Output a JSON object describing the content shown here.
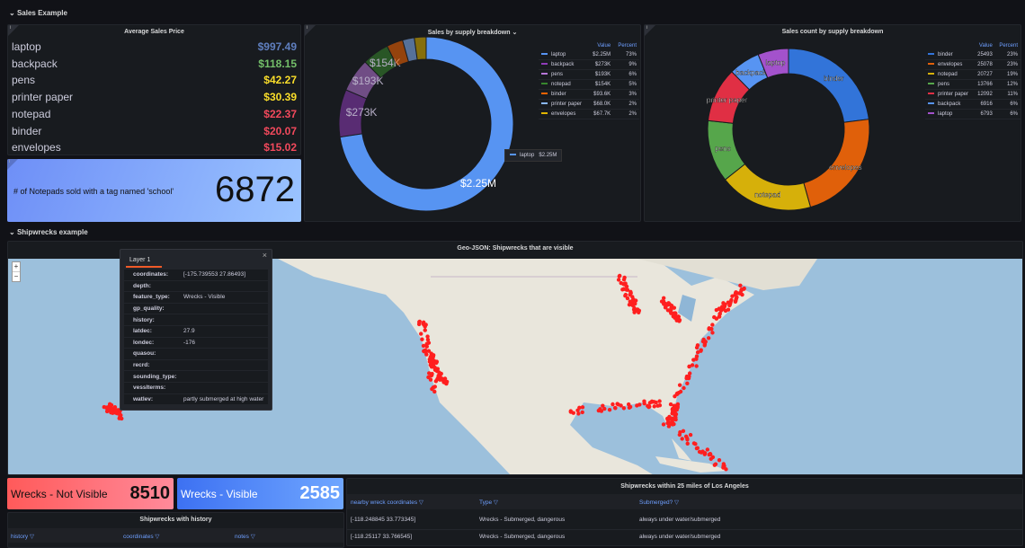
{
  "rows": {
    "sales": "Sales Example",
    "shipwrecks": "Shipwrecks example"
  },
  "avg_price": {
    "title": "Average Sales Price",
    "items": [
      {
        "label": "laptop",
        "value": "$997.49",
        "color": "#5f7fbf"
      },
      {
        "label": "backpack",
        "value": "$118.15",
        "color": "#73bf69"
      },
      {
        "label": "pens",
        "value": "$42.27",
        "color": "#fade2a"
      },
      {
        "label": "printer paper",
        "value": "$30.39",
        "color": "#fade2a"
      },
      {
        "label": "notepad",
        "value": "$22.37",
        "color": "#f2495c"
      },
      {
        "label": "binder",
        "value": "$20.07",
        "color": "#f2495c"
      },
      {
        "label": "envelopes",
        "value": "$15.02",
        "color": "#f2495c"
      }
    ]
  },
  "notepad_stat": {
    "label": "# of Notepads sold with a tag named 'school'",
    "value": "6872"
  },
  "chart_data": [
    {
      "type": "pie",
      "donut": true,
      "title": "Sales by supply breakdown",
      "legend_headers": [
        "Value",
        "Percent"
      ],
      "legend_placement": "right",
      "tooltip": {
        "label": "laptop",
        "value": "$2.25M"
      },
      "slices": [
        {
          "label": "laptop",
          "value": 2250000,
          "display": "$2.25M",
          "percent": "73%",
          "color": "#5794f2"
        },
        {
          "label": "backpack",
          "value": 273000,
          "display": "$273K",
          "percent": "9%",
          "color": "#8f3bb8"
        },
        {
          "label": "pens",
          "value": 193000,
          "display": "$193K",
          "percent": "6%",
          "color": "#b877d9"
        },
        {
          "label": "notepad",
          "value": 154000,
          "display": "$154K",
          "percent": "5%",
          "color": "#37872d"
        },
        {
          "label": "binder",
          "value": 93600,
          "display": "$93.6K",
          "percent": "3%",
          "color": "#fa6400"
        },
        {
          "label": "printer paper",
          "value": 68000,
          "display": "$68.0K",
          "percent": "2%",
          "color": "#8ab8ff"
        },
        {
          "label": "envelopes",
          "value": 67700,
          "display": "$67.7K",
          "percent": "2%",
          "color": "#e0b400"
        }
      ]
    },
    {
      "type": "pie",
      "donut": true,
      "title": "Sales count by supply breakdown",
      "legend_headers": [
        "Value",
        "Percent"
      ],
      "legend_placement": "right",
      "slices": [
        {
          "label": "binder",
          "value": 25493,
          "display": "25493",
          "percent": "23%",
          "color": "#3274d9"
        },
        {
          "label": "envelopes",
          "value": 25078,
          "display": "25078",
          "percent": "23%",
          "color": "#e0600a"
        },
        {
          "label": "notepad",
          "value": 20727,
          "display": "20727",
          "percent": "19%",
          "color": "#d6b00a"
        },
        {
          "label": "pens",
          "value": 13766,
          "display": "13766",
          "percent": "12%",
          "color": "#56a64b"
        },
        {
          "label": "printer paper",
          "value": 12092,
          "display": "12092",
          "percent": "11%",
          "color": "#e02f44"
        },
        {
          "label": "backpack",
          "value": 6916,
          "display": "6916",
          "percent": "6%",
          "color": "#5794f2"
        },
        {
          "label": "laptop",
          "value": 6793,
          "display": "6793",
          "percent": "6%",
          "color": "#a352cc"
        }
      ]
    }
  ],
  "map": {
    "title": "Geo-JSON: Shipwrecks that are visible",
    "zoom_in": "+",
    "zoom_out": "−",
    "popup": {
      "tab": "Layer 1",
      "close": "×",
      "fields": [
        {
          "k": "coordinates:",
          "v": "[-175.739553 27.86493]"
        },
        {
          "k": "depth:",
          "v": ""
        },
        {
          "k": "feature_type:",
          "v": "Wrecks - Visible"
        },
        {
          "k": "gp_quality:",
          "v": ""
        },
        {
          "k": "history:",
          "v": ""
        },
        {
          "k": "latdec:",
          "v": "27.9"
        },
        {
          "k": "londec:",
          "v": "-176"
        },
        {
          "k": "quasou:",
          "v": ""
        },
        {
          "k": "recrd:",
          "v": ""
        },
        {
          "k": "sounding_type:",
          "v": ""
        },
        {
          "k": "vesslterms:",
          "v": ""
        },
        {
          "k": "watlev:",
          "v": "partly submerged at high water"
        }
      ]
    }
  },
  "stat_not_visible": {
    "label": "Wrecks - Not Visible",
    "value": "8510"
  },
  "stat_visible": {
    "label": "Wrecks - Visible",
    "value": "2585"
  },
  "history_table": {
    "title": "Shipwrecks with history",
    "columns": [
      "history",
      "coordinates",
      "notes"
    ]
  },
  "la_table": {
    "title": "Shipwrecks within 25 miles of Los Angeles",
    "columns": [
      "nearby wreck coordinates",
      "Type",
      "Submerged?"
    ],
    "rows": [
      [
        "[-118.248845 33.773345]",
        "Wrecks - Submerged, dangerous",
        "always under water/submerged"
      ],
      [
        "[-118.25117 33.766545]",
        "Wrecks - Submerged, dangerous",
        "always under water/submerged"
      ]
    ]
  }
}
